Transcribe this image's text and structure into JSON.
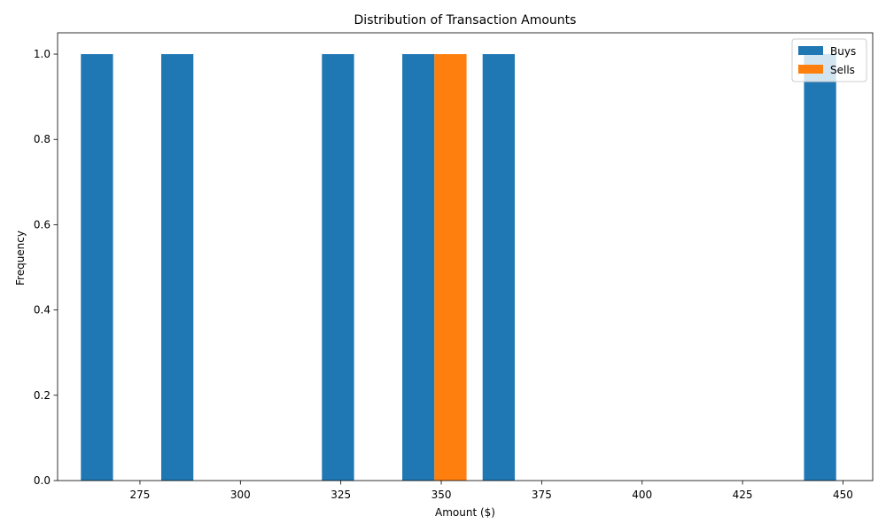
{
  "chart_data": {
    "type": "bar",
    "title": "Distribution of Transaction Amounts",
    "xlabel": "Amount ($)",
    "ylabel": "Frequency",
    "xlim": [
      254.5,
      457.4
    ],
    "ylim": [
      0,
      1.05
    ],
    "x_ticks": [
      275,
      300,
      325,
      350,
      375,
      400,
      425,
      450
    ],
    "x_tick_labels": [
      "275",
      "300",
      "325",
      "350",
      "375",
      "400",
      "425",
      "450"
    ],
    "y_ticks": [
      0.0,
      0.2,
      0.4,
      0.6,
      0.8,
      1.0
    ],
    "y_tick_labels": [
      "0.0",
      "0.2",
      "0.4",
      "0.6",
      "0.8",
      "1.0"
    ],
    "grid": false,
    "legend_position": "top-right",
    "series": [
      {
        "name": "Buys",
        "color": "#1f77b4",
        "bins": [
          {
            "x0": 260.3,
            "x1": 268.3,
            "value": 1
          },
          {
            "x0": 280.3,
            "x1": 288.3,
            "value": 1
          },
          {
            "x0": 320.3,
            "x1": 328.3,
            "value": 1
          },
          {
            "x0": 340.3,
            "x1": 348.3,
            "value": 1
          },
          {
            "x0": 360.3,
            "x1": 368.3,
            "value": 1
          },
          {
            "x0": 440.3,
            "x1": 448.3,
            "value": 1
          }
        ]
      },
      {
        "name": "Sells",
        "color": "#ff7f0e",
        "bins": [
          {
            "x0": 348.3,
            "x1": 356.3,
            "value": 1
          }
        ]
      }
    ]
  }
}
